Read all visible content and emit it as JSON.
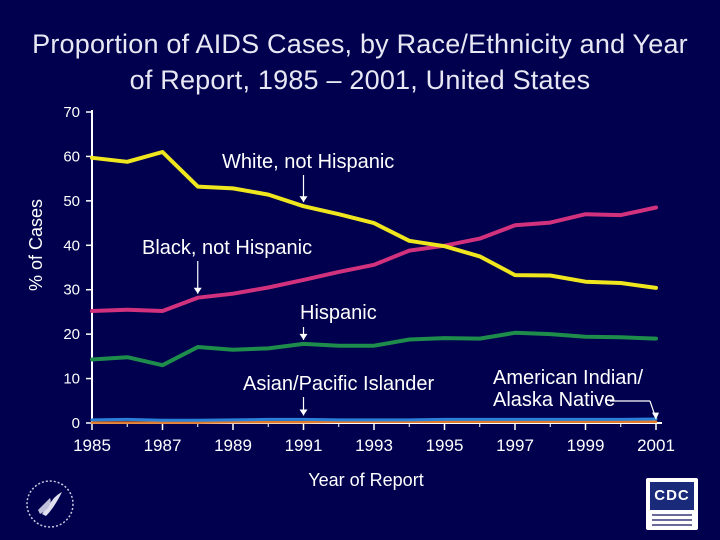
{
  "title_lines": [
    "Proportion of AIDS Cases, by Race/Ethnicity and Year",
    "of Report, 1985 – 2001, United States"
  ],
  "chart_data": {
    "type": "line",
    "title": "Proportion of AIDS Cases, by Race/Ethnicity and Year of Report, 1985 – 2001, United States",
    "xlabel": "Year of Report",
    "ylabel": "% of Cases",
    "xlim": [
      1985,
      2001
    ],
    "ylim": [
      0,
      70
    ],
    "yticks": [
      0,
      10,
      20,
      30,
      40,
      50,
      60,
      70
    ],
    "xticks": [
      1985,
      1987,
      1989,
      1991,
      1993,
      1995,
      1997,
      1999,
      2001
    ],
    "x": [
      1985,
      1986,
      1987,
      1988,
      1989,
      1990,
      1991,
      1992,
      1993,
      1994,
      1995,
      1996,
      1997,
      1998,
      1999,
      2000,
      2001
    ],
    "series": [
      {
        "name": "White, not Hispanic",
        "color": "#f0e61e",
        "values": [
          59.7,
          58.8,
          61.0,
          53.2,
          52.8,
          51.4,
          48.8,
          47.0,
          45.0,
          41.0,
          39.8,
          37.5,
          33.3,
          33.2,
          31.8,
          31.5,
          30.4
        ]
      },
      {
        "name": "Black, not Hispanic",
        "color": "#d2327d",
        "values": [
          25.2,
          25.5,
          25.2,
          28.2,
          29.1,
          30.5,
          32.2,
          34.0,
          35.6,
          38.8,
          39.9,
          41.5,
          44.5,
          45.1,
          47.0,
          46.8,
          48.5
        ]
      },
      {
        "name": "Hispanic",
        "color": "#1e8c4b",
        "values": [
          14.3,
          14.8,
          13.0,
          17.1,
          16.5,
          16.8,
          17.8,
          17.4,
          17.4,
          18.8,
          19.1,
          19.0,
          20.3,
          20.0,
          19.4,
          19.3,
          19.0
        ]
      },
      {
        "name": "Asian/Pacific Islander",
        "color": "#2a80d8",
        "values": [
          0.7,
          0.8,
          0.6,
          0.6,
          0.7,
          0.8,
          0.8,
          0.7,
          0.7,
          0.7,
          0.8,
          0.8,
          0.8,
          0.8,
          0.8,
          0.8,
          0.9
        ]
      },
      {
        "name": "American Indian/ Alaska Native",
        "color": "#e07a2a",
        "values": [
          0.1,
          0.1,
          0.1,
          0.1,
          0.2,
          0.2,
          0.2,
          0.3,
          0.3,
          0.3,
          0.3,
          0.3,
          0.3,
          0.3,
          0.3,
          0.3,
          0.3
        ]
      }
    ],
    "annotations": [
      {
        "series": "White, not Hispanic",
        "lines": [
          "White, not Hispanic"
        ],
        "target_year": 1991
      },
      {
        "series": "Black, not Hispanic",
        "lines": [
          "Black, not Hispanic"
        ],
        "target_year": 1988
      },
      {
        "series": "Hispanic",
        "lines": [
          "Hispanic"
        ],
        "target_year": 1991
      },
      {
        "series": "Asian/Pacific Islander",
        "lines": [
          "Asian/Pacific Islander"
        ],
        "target_year": 1991
      },
      {
        "series": "American Indian/ Alaska Native",
        "lines": [
          "American Indian/",
          "Alaska Native"
        ],
        "target_year": 2001
      }
    ],
    "grid": false
  },
  "colors": {
    "background": "#00004e",
    "axis": "#ffffff",
    "text": "#ffffff"
  },
  "logos": {
    "cdc_text": "CDC"
  }
}
